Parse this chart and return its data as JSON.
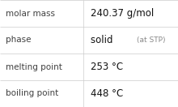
{
  "rows": [
    {
      "label": "molar mass",
      "value": "240.37 g/mol",
      "value_suffix": null
    },
    {
      "label": "phase",
      "value": "solid",
      "value_suffix": "(at STP)"
    },
    {
      "label": "melting point",
      "value": "253 °C",
      "value_suffix": null
    },
    {
      "label": "boiling point",
      "value": "448 °C",
      "value_suffix": null
    }
  ],
  "col_split": 0.47,
  "bg_color": "#ffffff",
  "border_color": "#cccccc",
  "label_color": "#404040",
  "value_color": "#111111",
  "suffix_color": "#888888",
  "label_fontsize": 7.5,
  "value_fontsize": 8.5,
  "suffix_fontsize": 6.5,
  "font_family": "DejaVu Sans"
}
